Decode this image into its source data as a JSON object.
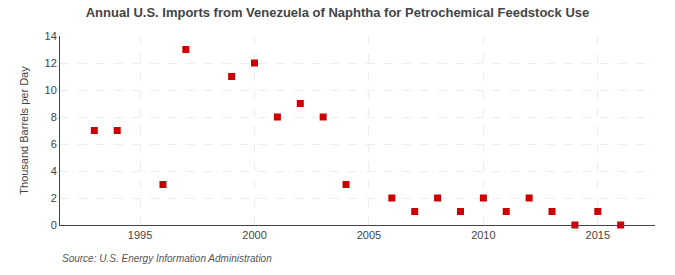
{
  "chart_data": {
    "type": "scatter",
    "title": "Annual U.S. Imports from Venezuela of Naphtha for Petrochemical Feedstock Use",
    "ylabel": "Thousand Barrels per Day",
    "annotations": [
      "Source: U.S. Energy Information Administration"
    ],
    "x": [
      1993,
      1994,
      1996,
      1997,
      1999,
      2000,
      2001,
      2002,
      2003,
      2004,
      2006,
      2007,
      2008,
      2009,
      2010,
      2011,
      2012,
      2013,
      2014,
      2015,
      2016
    ],
    "values": [
      7,
      7,
      3,
      13,
      11,
      12,
      8,
      9,
      8,
      3,
      2,
      1,
      2,
      1,
      2,
      1,
      2,
      1,
      0,
      1,
      0
    ],
    "color": "#cc0000",
    "marker": "square",
    "xlim": [
      1991.5,
      2017.5
    ],
    "xticks": [
      1995,
      2000,
      2005,
      2010,
      2015
    ],
    "ylim": [
      0,
      14
    ],
    "yticks": [
      0,
      2,
      4,
      6,
      8,
      10,
      12,
      14
    ],
    "grid": true
  }
}
